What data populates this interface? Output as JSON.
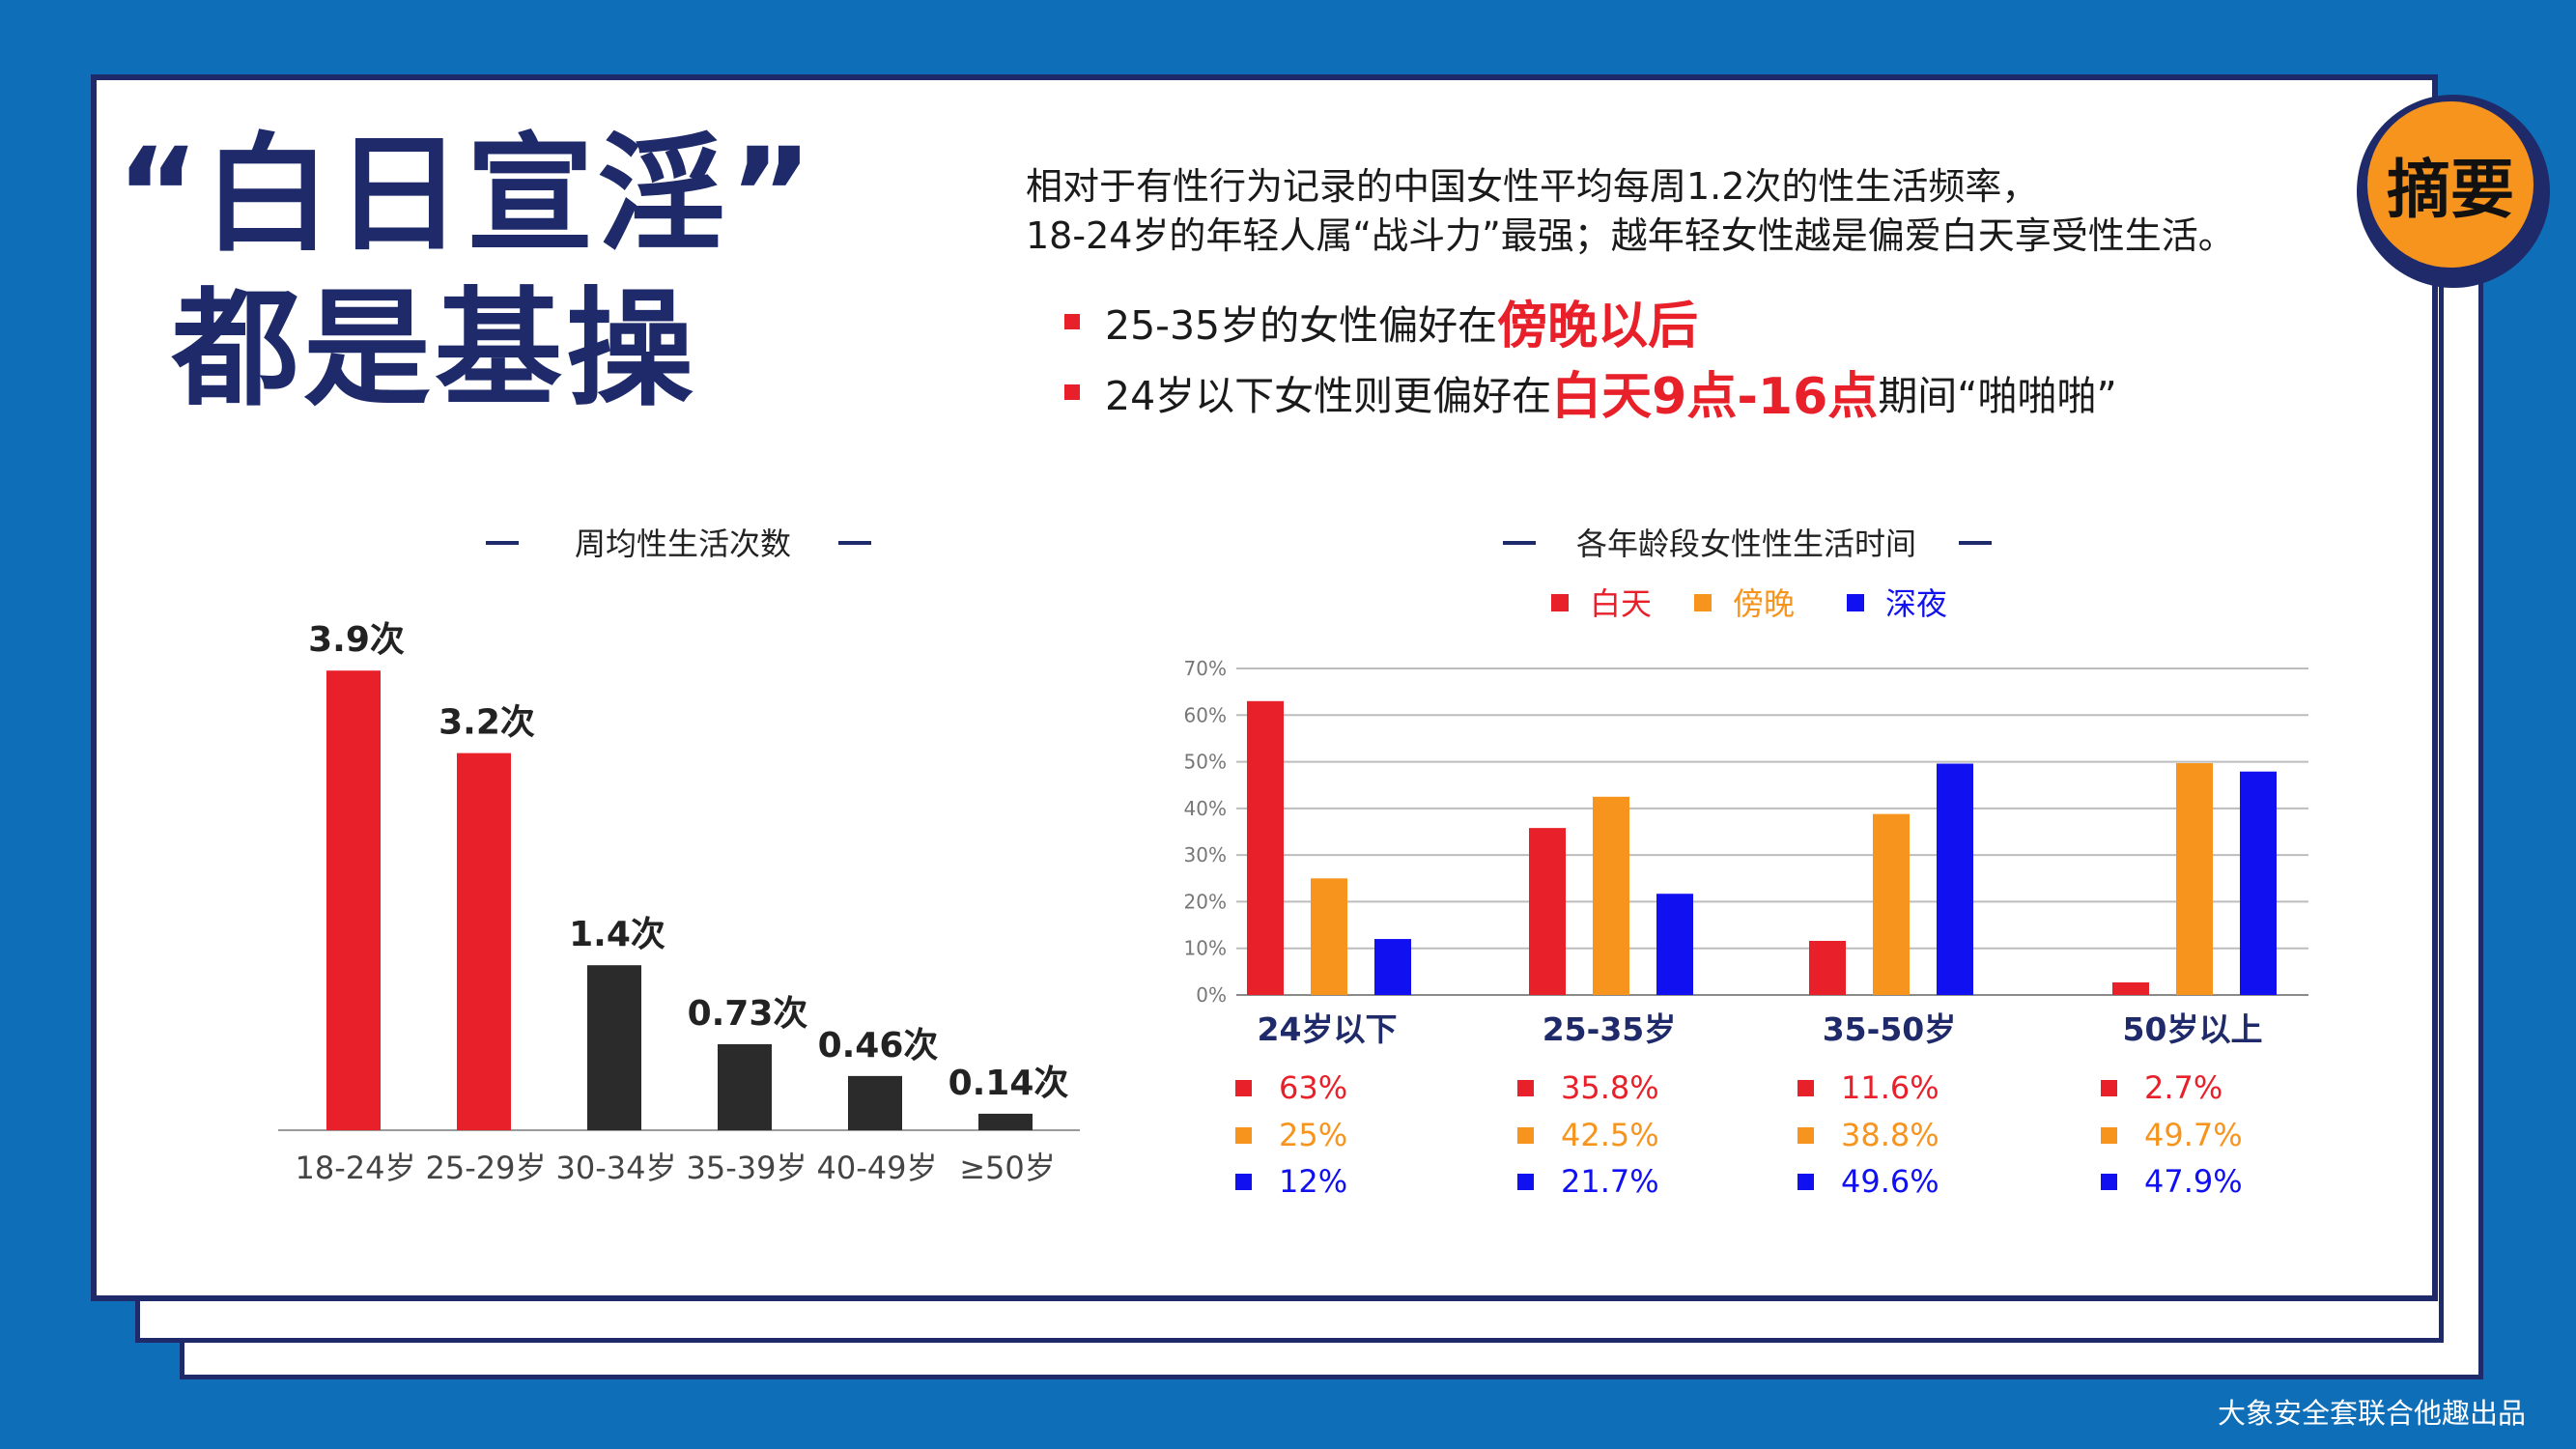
{
  "title": {
    "line1": "“白日宣淫”",
    "line2": "都是基操"
  },
  "badge": "摘要",
  "summary": {
    "line1": "相对于有性行为记录的中国女性平均每周1.2次的性生活频率，",
    "line2": "18-24岁的年轻人属“战斗力”最强；越年轻女性越是偏爱白天享受性生活。"
  },
  "bullets": [
    {
      "before": "25-35岁的女性偏好在",
      "highlight": "傍晚以后",
      "after": ""
    },
    {
      "before": "24岁以下女性则更偏好在",
      "highlight": "白天9点-16点",
      "after": "期间“啪啪啪”"
    }
  ],
  "footer": "大象安全套联合他趣出品",
  "colors": {
    "navy": "#1f2a6b",
    "red": "#e8202a",
    "black": "#2b2b2b",
    "orange": "#f7941d",
    "blue": "#1010f0",
    "background": "#0f6eb8"
  },
  "chart_data": [
    {
      "type": "bar",
      "title": "周均性生活次数",
      "categories": [
        "18-24岁",
        "25-29岁",
        "30-34岁",
        "35-39岁",
        "40-49岁",
        "≥50岁"
      ],
      "values": [
        3.9,
        3.2,
        1.4,
        0.73,
        0.46,
        0.14
      ],
      "labels": [
        "3.9次",
        "3.2次",
        "1.4次",
        "0.73次",
        "0.46次",
        "0.14次"
      ],
      "bar_colors": [
        "#e8202a",
        "#e8202a",
        "#2b2b2b",
        "#2b2b2b",
        "#2b2b2b",
        "#2b2b2b"
      ],
      "ylim": [
        0,
        4.0
      ]
    },
    {
      "type": "bar",
      "title": "各年龄段女性性生活时间",
      "categories": [
        "24岁以下",
        "25-35岁",
        "35-50岁",
        "50岁以上"
      ],
      "series": [
        {
          "name": "白天",
          "color": "#e8202a",
          "values": [
            63,
            35.8,
            11.6,
            2.7
          ],
          "labels": [
            "63%",
            "35.8%",
            "11.6%",
            "2.7%"
          ]
        },
        {
          "name": "傍晚",
          "color": "#f7941d",
          "values": [
            25,
            42.5,
            38.8,
            49.7
          ],
          "labels": [
            "25%",
            "42.5%",
            "38.8%",
            "49.7%"
          ]
        },
        {
          "name": "深夜",
          "color": "#1010f0",
          "values": [
            12,
            21.7,
            49.6,
            47.9
          ],
          "labels": [
            "12%",
            "21.7%",
            "49.6%",
            "47.9%"
          ]
        }
      ],
      "yticks": [
        "0%",
        "10%",
        "20%",
        "30%",
        "40%",
        "50%",
        "60%",
        "70%"
      ],
      "ylim": [
        0,
        70
      ],
      "grid": true,
      "legend": "top-center"
    }
  ]
}
